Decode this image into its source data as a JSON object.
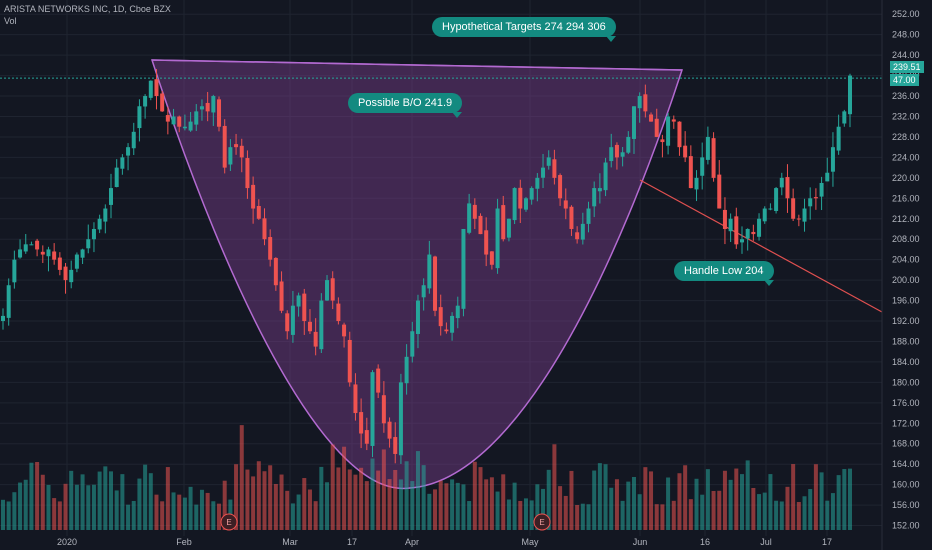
{
  "header": {
    "symbol_line": "ARISTA NETWORKS INC, 1D, Cboe BZX",
    "vol_label": "Vol"
  },
  "annotations": {
    "targets": "Hypothetical Targets  274  294  306",
    "breakout": "Possible B/O  241.9",
    "handle": "Handle Low  204"
  },
  "price_tags": {
    "last": "239.51",
    "volume": "47.00"
  },
  "earnings_markers": [
    "E",
    "E"
  ],
  "colors": {
    "up": "#26a69a",
    "down": "#ef5350",
    "bg": "#131722",
    "cup_fill": "#7b3f8c",
    "cup_line": "#b36ad1",
    "trend": "#e05050"
  },
  "chart_data": {
    "type": "candlestick",
    "title": "ARISTA NETWORKS INC, 1D, Cboe BZX",
    "ylim": [
      148,
      254
    ],
    "y_ticks": [
      152,
      156,
      160,
      164,
      168,
      172,
      176,
      180,
      184,
      188,
      192,
      196,
      200,
      204,
      208,
      212,
      216,
      220,
      224,
      228,
      232,
      236,
      240,
      244,
      248,
      252
    ],
    "x_ticks": [
      "2020",
      "Feb",
      "Mar",
      "17",
      "Apr",
      "May",
      "Jun",
      "16",
      "Jul",
      "17"
    ],
    "series": [
      {
        "name": "price",
        "closes": [
          193,
          199,
          204,
          206,
          207,
          207,
          206,
          205,
          206,
          204,
          202,
          200,
          202,
          205,
          206,
          208,
          210,
          212,
          214,
          218,
          222,
          224,
          226,
          229,
          234,
          236,
          239,
          236,
          233,
          231,
          232,
          230,
          230,
          231,
          233,
          234,
          233,
          236,
          230,
          222,
          226,
          226,
          224,
          218,
          214,
          212,
          208,
          204,
          199,
          194,
          190,
          195,
          197,
          192,
          190,
          187,
          196,
          200,
          196,
          192,
          189,
          180,
          174,
          170,
          168,
          182,
          178,
          172,
          169,
          166,
          180,
          185,
          190,
          196,
          199,
          205,
          194,
          191,
          190,
          193,
          195,
          210,
          215,
          212,
          209,
          205,
          203,
          214,
          208,
          212,
          218,
          214,
          216,
          218,
          220,
          222,
          224,
          220,
          216,
          214,
          210,
          208,
          211,
          214,
          218,
          218,
          223,
          226,
          224,
          225,
          228,
          234,
          236,
          233,
          231,
          228,
          227,
          232,
          231,
          226,
          224,
          218,
          220,
          224,
          228,
          220,
          214,
          210,
          212,
          207,
          208,
          210,
          209,
          212,
          214,
          214,
          218,
          220,
          216,
          212,
          212,
          214,
          216,
          216,
          219,
          221,
          226,
          230,
          233,
          240
        ]
      }
    ],
    "volume_scale_max": 100
  }
}
